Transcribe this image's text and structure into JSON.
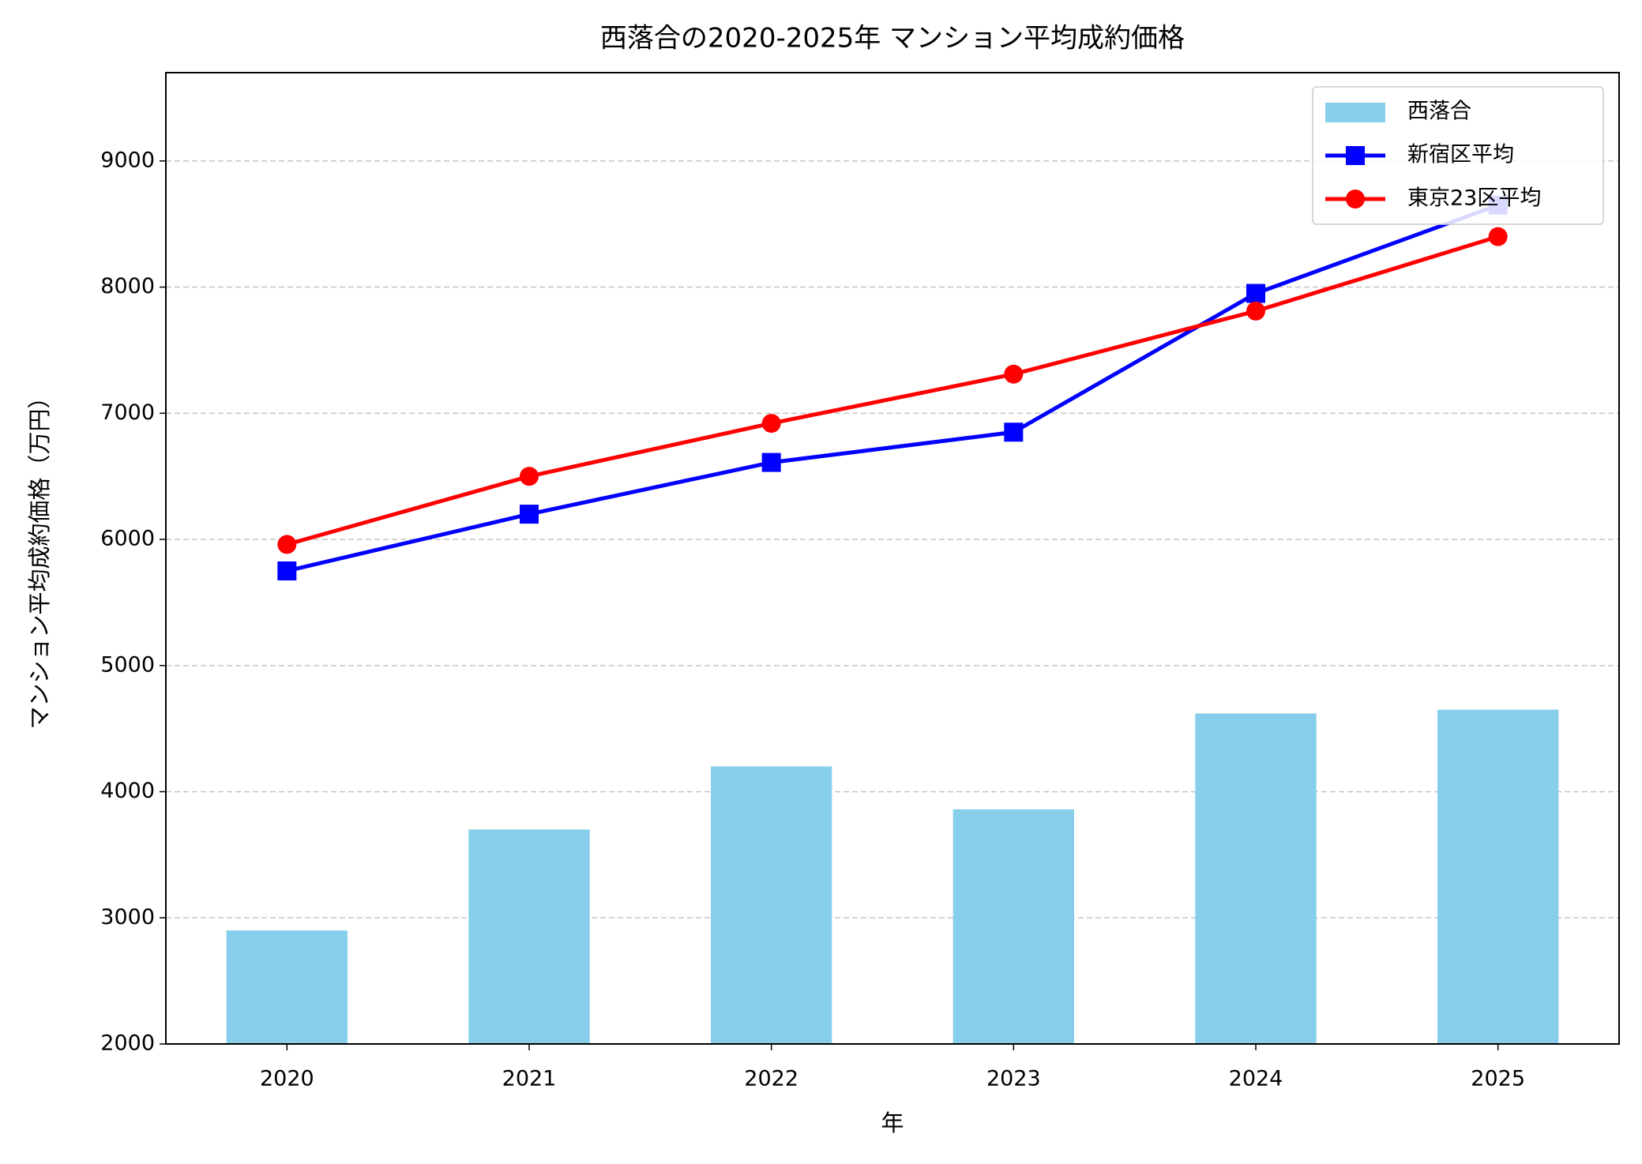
{
  "chart_data": {
    "type": "bar-line",
    "title": "西落合の2020-2025年 マンション平均成約価格",
    "x_label": "年",
    "y_label": "マンション平均成約価格（万円）",
    "categories": [
      "2020",
      "2021",
      "2022",
      "2023",
      "2024",
      "2025"
    ],
    "series": [
      {
        "name": "西落合",
        "type": "bar",
        "color": "#87ceeb",
        "values": [
          2900,
          3700,
          4200,
          3860,
          4620,
          4650
        ]
      },
      {
        "name": "新宿区平均",
        "type": "line",
        "marker": "square",
        "color": "#0000ff",
        "values": [
          5750,
          6200,
          6610,
          6850,
          7950,
          8650
        ]
      },
      {
        "name": "東京23区平均",
        "type": "line",
        "marker": "circle",
        "color": "#ff0000",
        "values": [
          5960,
          6500,
          6920,
          7310,
          7810,
          8400
        ]
      }
    ],
    "ylim": [
      2000,
      9700
    ],
    "yticks": [
      2000,
      3000,
      4000,
      5000,
      6000,
      7000,
      8000,
      9000
    ],
    "grid": true,
    "legend": "upper right"
  }
}
